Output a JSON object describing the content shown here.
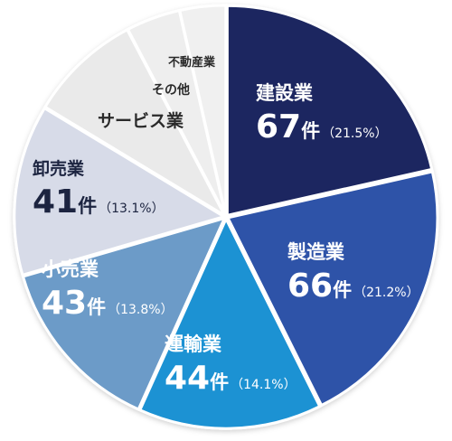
{
  "chart_data": {
    "type": "pie",
    "title": "",
    "slices": [
      {
        "label": "建設業",
        "count_text": "67",
        "unit": "件",
        "percent_text": "（21.5%）",
        "value": 67,
        "color": "#1b2760",
        "text_color": "#ffffff"
      },
      {
        "label": "製造業",
        "count_text": "66",
        "unit": "件",
        "percent_text": "（21.2%）",
        "value": 66,
        "color": "#2e53a8",
        "text_color": "#ffffff"
      },
      {
        "label": "運輸業",
        "count_text": "44",
        "unit": "件",
        "percent_text": "（14.1%）",
        "value": 44,
        "color": "#1e92d3",
        "text_color": "#ffffff"
      },
      {
        "label": "小売業",
        "count_text": "43",
        "unit": "件",
        "percent_text": "（13.8%）",
        "value": 43,
        "color": "#6c9bc8",
        "text_color": "#ffffff"
      },
      {
        "label": "卸売業",
        "count_text": "41",
        "unit": "件",
        "percent_text": "（13.1%）",
        "value": 41,
        "color": "#d7dbe8",
        "text_color": "#1c2440"
      },
      {
        "label": "サービス業",
        "count_text": "",
        "unit": "",
        "percent_text": "",
        "value": 27,
        "color": "#eaeaea",
        "text_color": "#2a2a2a"
      },
      {
        "label": "その他",
        "count_text": "",
        "unit": "",
        "percent_text": "",
        "value": 13,
        "color": "#eeeeee",
        "text_color": "#2a2a2a"
      },
      {
        "label": "不動産業",
        "count_text": "",
        "unit": "",
        "percent_text": "",
        "value": 11,
        "color": "#f0f0f0",
        "text_color": "#2a2a2a"
      }
    ]
  }
}
